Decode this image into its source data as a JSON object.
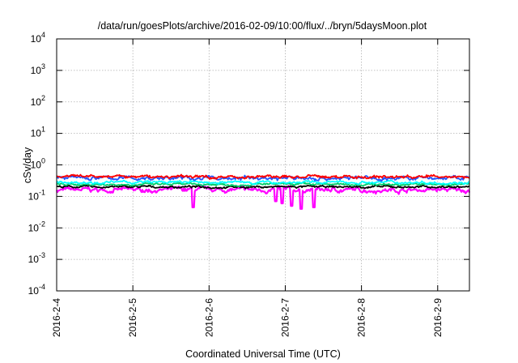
{
  "chart_data": {
    "type": "line",
    "title": "/data/run/goesPlots/archive/2016-02-09/10:00/flux/../bryn/5daysMoon.plot",
    "xlabel": "Coordinated Universal Time (UTC)",
    "ylabel": "cSv/day",
    "yscale": "log",
    "ylim": [
      0.0001,
      10000
    ],
    "xlim": [
      "2016-02-04 00:00",
      "2016-02-09 10:00"
    ],
    "grid": true,
    "legend": "none",
    "x_tick_labels": [
      "2016-2-4",
      "2016-2-5",
      "2016-2-6",
      "2016-2-7",
      "2016-2-8",
      "2016-2-9"
    ],
    "y_tick_labels": [
      {
        "base": "10",
        "exp": "-4"
      },
      {
        "base": "10",
        "exp": "-3"
      },
      {
        "base": "10",
        "exp": "-2"
      },
      {
        "base": "10",
        "exp": "-1"
      },
      {
        "base": "10",
        "exp": "0"
      },
      {
        "base": "10",
        "exp": "1"
      },
      {
        "base": "10",
        "exp": "2"
      },
      {
        "base": "10",
        "exp": "3"
      },
      {
        "base": "10",
        "exp": "4"
      }
    ],
    "series": [
      {
        "color": "#ff00ff",
        "level": 0.16,
        "variability": 0.25,
        "dips": [
          [
            "2016-02-05 19:00",
            0.045
          ],
          [
            "2016-02-06 21:00",
            0.07
          ],
          [
            "2016-02-06 23:00",
            0.06
          ],
          [
            "2016-02-07 02:00",
            0.05
          ],
          [
            "2016-02-07 05:00",
            0.04
          ],
          [
            "2016-02-07 09:00",
            0.045
          ]
        ]
      },
      {
        "color": "#000000",
        "level": 0.2,
        "variability": 0.12,
        "dips": []
      },
      {
        "color": "#00cc66",
        "level": 0.24,
        "variability": 0.12,
        "dips": []
      },
      {
        "color": "#00ffff",
        "level": 0.28,
        "variability": 0.15,
        "dips": []
      },
      {
        "color": "#2255ff",
        "level": 0.38,
        "variability": 0.22,
        "dips": []
      },
      {
        "color": "#ff0000",
        "level": 0.42,
        "variability": 0.18,
        "dips": []
      }
    ]
  }
}
